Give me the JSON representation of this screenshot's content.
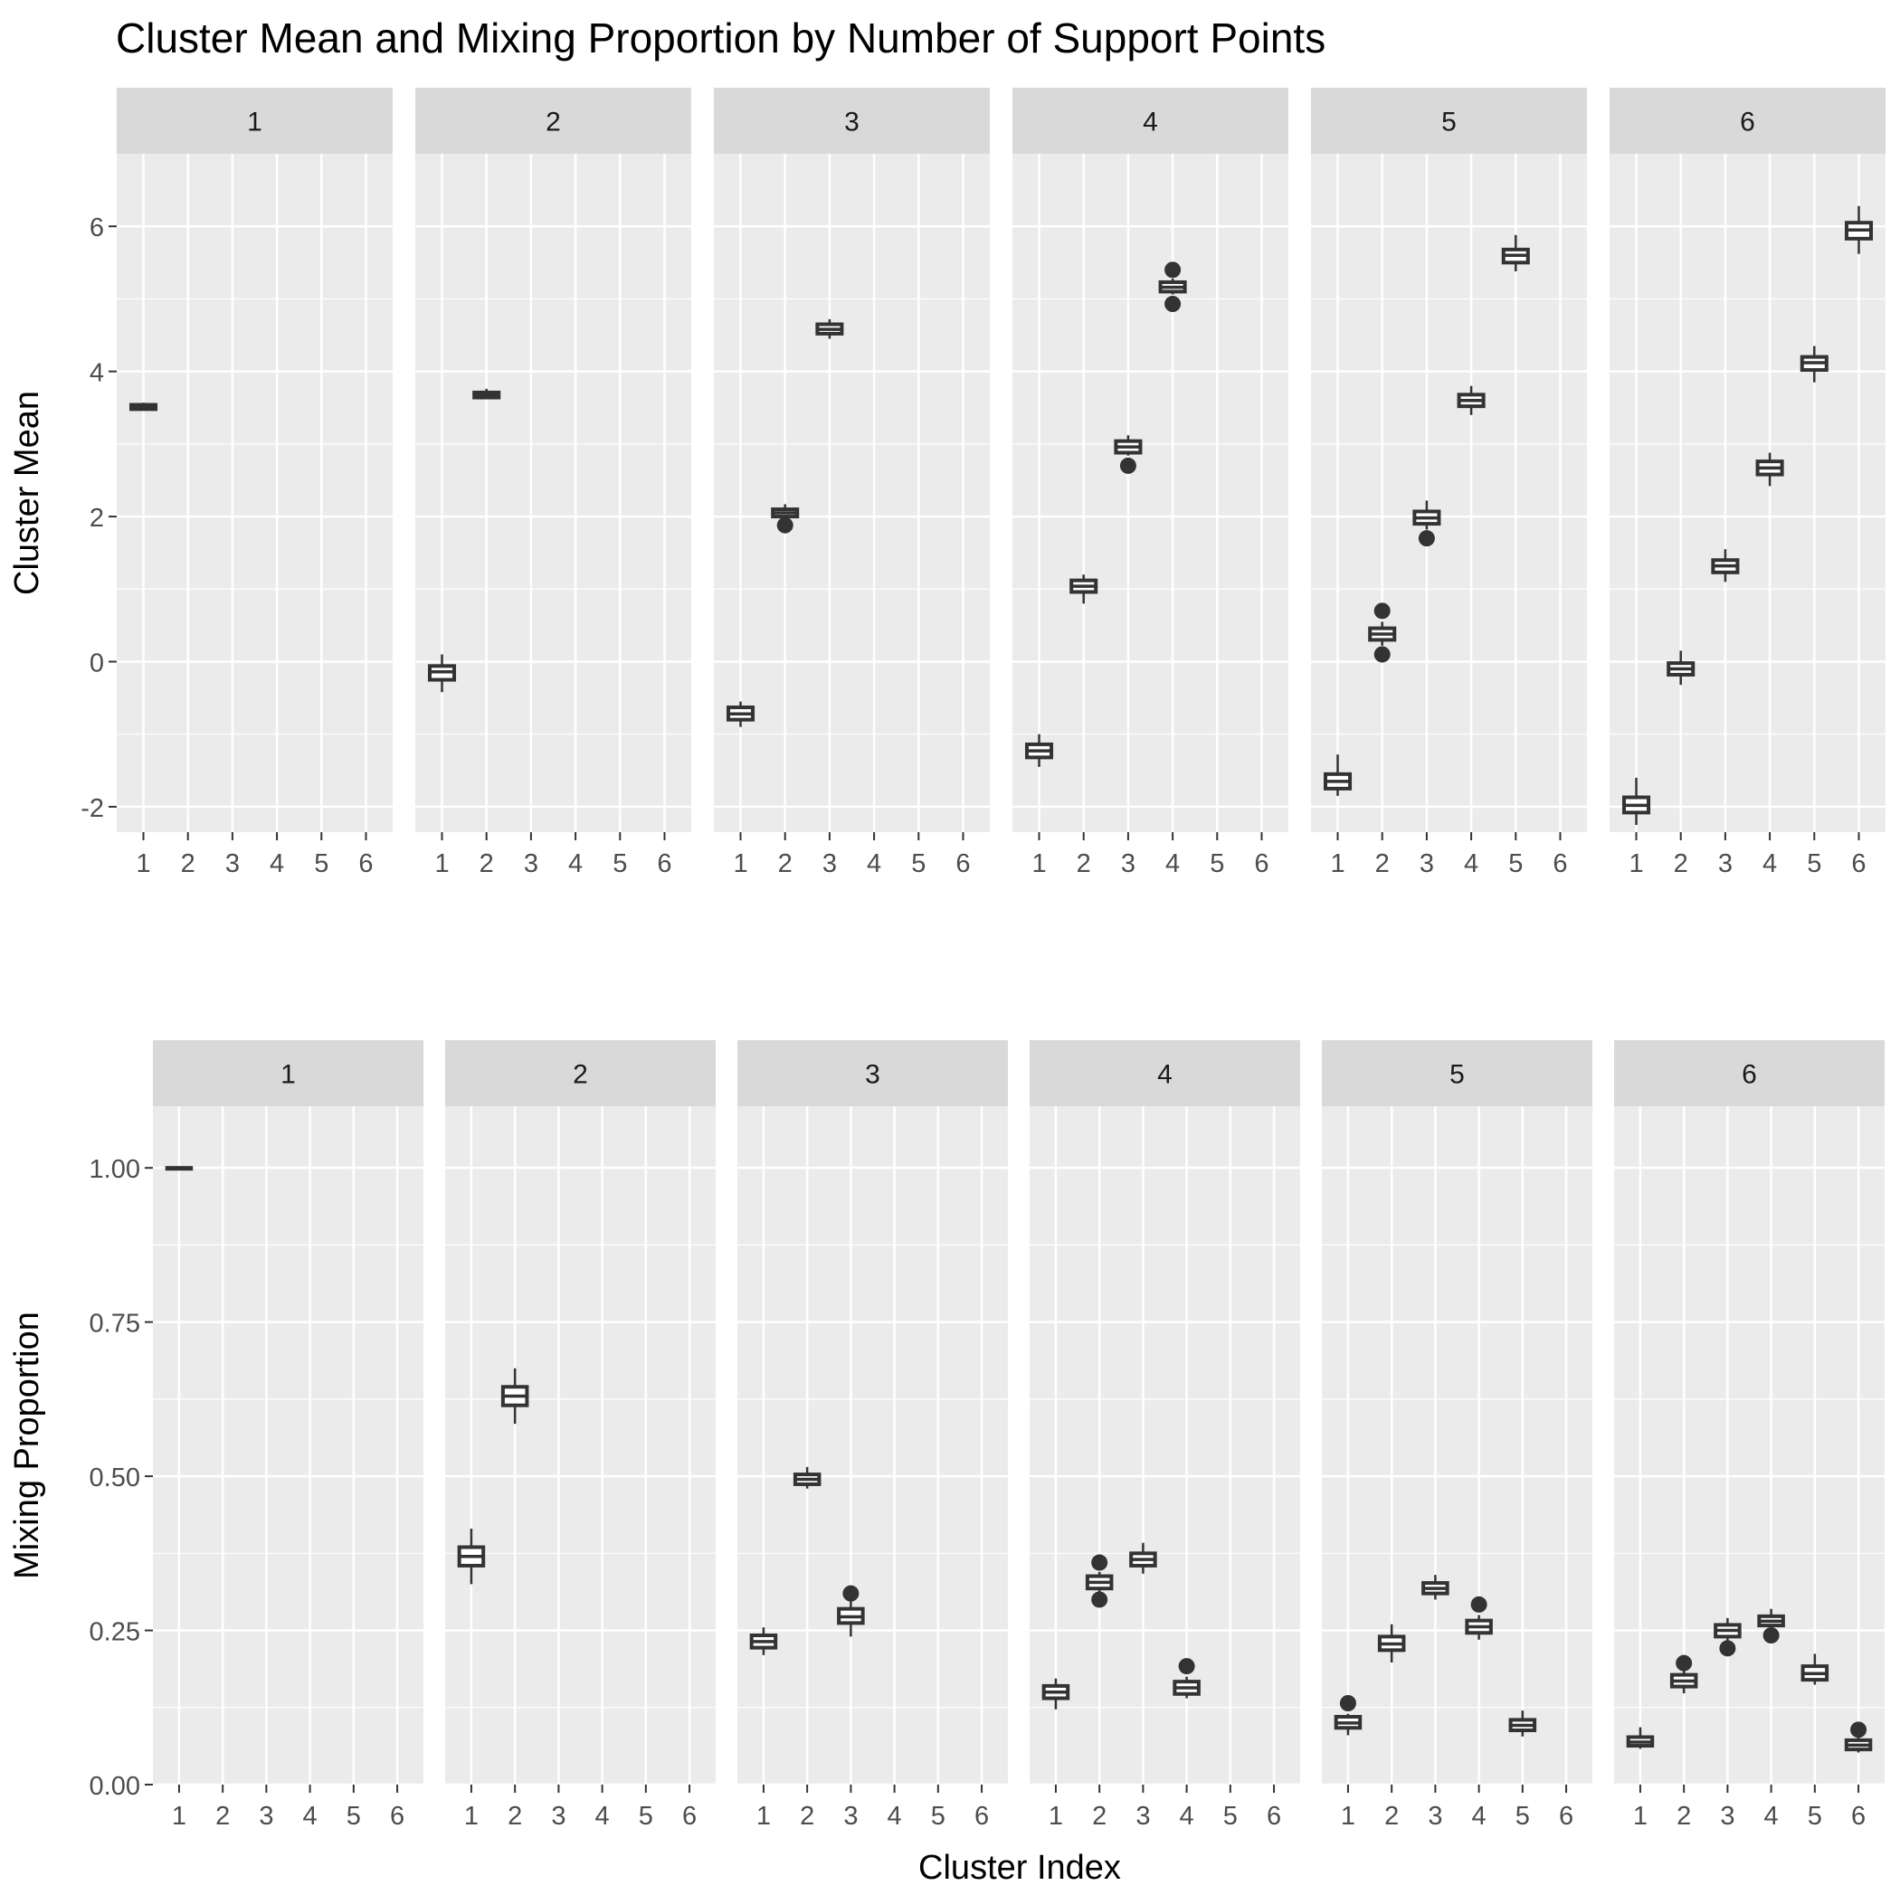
{
  "title": "Cluster Mean and Mixing Proportion by Number of Support Points",
  "xlabel": "Cluster Index",
  "colors": {
    "panel_bg": "#ebebeb",
    "strip_bg": "#d9d9d9",
    "grid": "#ffffff",
    "box_stroke": "#333333",
    "box_fill": "#ffffff",
    "text": "#1a1a1a",
    "tick_text": "#4d4d4d"
  },
  "chart_data": [
    {
      "type": "boxplot",
      "ylabel": "Cluster Mean",
      "ylim": [
        -2.35,
        7.0
      ],
      "yticks": [
        -2,
        0,
        2,
        4,
        6
      ],
      "ytick_labels": [
        "-2",
        "0",
        "2",
        "4",
        "6"
      ],
      "categories": [
        "1",
        "2",
        "3",
        "4",
        "5",
        "6"
      ],
      "facets": [
        {
          "label": "1",
          "boxes": [
            {
              "x": 1,
              "whisker_low": 3.46,
              "q1": 3.48,
              "median": 3.51,
              "q3": 3.54,
              "whisker_high": 3.57,
              "outliers": []
            }
          ]
        },
        {
          "label": "2",
          "boxes": [
            {
              "x": 1,
              "whisker_low": -0.42,
              "q1": -0.25,
              "median": -0.14,
              "q3": -0.06,
              "whisker_high": 0.1,
              "outliers": []
            },
            {
              "x": 2,
              "whisker_low": 3.62,
              "q1": 3.64,
              "median": 3.68,
              "q3": 3.71,
              "whisker_high": 3.76,
              "outliers": []
            }
          ]
        },
        {
          "label": "3",
          "boxes": [
            {
              "x": 1,
              "whisker_low": -0.9,
              "q1": -0.8,
              "median": -0.72,
              "q3": -0.63,
              "whisker_high": -0.55,
              "outliers": []
            },
            {
              "x": 2,
              "whisker_low": 1.96,
              "q1": 2.0,
              "median": 2.05,
              "q3": 2.1,
              "whisker_high": 2.17,
              "outliers": [
                1.88
              ]
            },
            {
              "x": 3,
              "whisker_low": 4.45,
              "q1": 4.52,
              "median": 4.58,
              "q3": 4.65,
              "whisker_high": 4.72,
              "outliers": []
            }
          ]
        },
        {
          "label": "4",
          "boxes": [
            {
              "x": 1,
              "whisker_low": -1.45,
              "q1": -1.32,
              "median": -1.23,
              "q3": -1.14,
              "whisker_high": -1.0,
              "outliers": []
            },
            {
              "x": 2,
              "whisker_low": 0.8,
              "q1": 0.96,
              "median": 1.04,
              "q3": 1.12,
              "whisker_high": 1.2,
              "outliers": []
            },
            {
              "x": 3,
              "whisker_low": 2.84,
              "q1": 2.88,
              "median": 2.96,
              "q3": 3.04,
              "whisker_high": 3.12,
              "outliers": [
                2.7
              ]
            },
            {
              "x": 4,
              "whisker_low": 5.06,
              "q1": 5.1,
              "median": 5.16,
              "q3": 5.23,
              "whisker_high": 5.28,
              "outliers": [
                5.4,
                4.93
              ]
            }
          ]
        },
        {
          "label": "5",
          "boxes": [
            {
              "x": 1,
              "whisker_low": -1.85,
              "q1": -1.75,
              "median": -1.65,
              "q3": -1.55,
              "whisker_high": -1.28,
              "outliers": []
            },
            {
              "x": 2,
              "whisker_low": 0.22,
              "q1": 0.3,
              "median": 0.38,
              "q3": 0.46,
              "whisker_high": 0.55,
              "outliers": [
                0.7,
                0.1
              ]
            },
            {
              "x": 3,
              "whisker_low": 1.82,
              "q1": 1.9,
              "median": 1.98,
              "q3": 2.07,
              "whisker_high": 2.22,
              "outliers": [
                1.7
              ]
            },
            {
              "x": 4,
              "whisker_low": 3.4,
              "q1": 3.52,
              "median": 3.6,
              "q3": 3.68,
              "whisker_high": 3.8,
              "outliers": []
            },
            {
              "x": 5,
              "whisker_low": 5.38,
              "q1": 5.5,
              "median": 5.6,
              "q3": 5.68,
              "whisker_high": 5.88,
              "outliers": []
            }
          ]
        },
        {
          "label": "6",
          "boxes": [
            {
              "x": 1,
              "whisker_low": -2.25,
              "q1": -2.08,
              "median": -1.98,
              "q3": -1.87,
              "whisker_high": -1.6,
              "outliers": []
            },
            {
              "x": 2,
              "whisker_low": -0.32,
              "q1": -0.18,
              "median": -0.1,
              "q3": -0.02,
              "whisker_high": 0.15,
              "outliers": []
            },
            {
              "x": 3,
              "whisker_low": 1.1,
              "q1": 1.23,
              "median": 1.32,
              "q3": 1.4,
              "whisker_high": 1.55,
              "outliers": []
            },
            {
              "x": 4,
              "whisker_low": 2.42,
              "q1": 2.58,
              "median": 2.67,
              "q3": 2.76,
              "whisker_high": 2.88,
              "outliers": []
            },
            {
              "x": 5,
              "whisker_low": 3.85,
              "q1": 4.02,
              "median": 4.12,
              "q3": 4.2,
              "whisker_high": 4.35,
              "outliers": []
            },
            {
              "x": 6,
              "whisker_low": 5.62,
              "q1": 5.83,
              "median": 5.95,
              "q3": 6.05,
              "whisker_high": 6.28,
              "outliers": []
            }
          ]
        }
      ]
    },
    {
      "type": "boxplot",
      "ylabel": "Mixing Proportion",
      "ylim": [
        0.0,
        1.1
      ],
      "yticks": [
        0.0,
        0.25,
        0.5,
        0.75,
        1.0
      ],
      "ytick_labels": [
        "0.00",
        "0.25",
        "0.50",
        "0.75",
        "1.00"
      ],
      "categories": [
        "1",
        "2",
        "3",
        "4",
        "5",
        "6"
      ],
      "facets": [
        {
          "label": "1",
          "boxes": [
            {
              "x": 1,
              "whisker_low": 1.0,
              "q1": 1.0,
              "median": 1.0,
              "q3": 1.0,
              "whisker_high": 1.0,
              "outliers": []
            }
          ]
        },
        {
          "label": "2",
          "boxes": [
            {
              "x": 1,
              "whisker_low": 0.325,
              "q1": 0.355,
              "median": 0.37,
              "q3": 0.385,
              "whisker_high": 0.415,
              "outliers": []
            },
            {
              "x": 2,
              "whisker_low": 0.585,
              "q1": 0.615,
              "median": 0.63,
              "q3": 0.645,
              "whisker_high": 0.675,
              "outliers": []
            }
          ]
        },
        {
          "label": "3",
          "boxes": [
            {
              "x": 1,
              "whisker_low": 0.21,
              "q1": 0.222,
              "median": 0.232,
              "q3": 0.242,
              "whisker_high": 0.255,
              "outliers": []
            },
            {
              "x": 2,
              "whisker_low": 0.48,
              "q1": 0.487,
              "median": 0.495,
              "q3": 0.503,
              "whisker_high": 0.515,
              "outliers": []
            },
            {
              "x": 3,
              "whisker_low": 0.24,
              "q1": 0.262,
              "median": 0.272,
              "q3": 0.285,
              "whisker_high": 0.298,
              "outliers": [
                0.31
              ]
            }
          ]
        },
        {
          "label": "4",
          "boxes": [
            {
              "x": 1,
              "whisker_low": 0.122,
              "q1": 0.14,
              "median": 0.15,
              "q3": 0.16,
              "whisker_high": 0.172,
              "outliers": []
            },
            {
              "x": 2,
              "whisker_low": 0.312,
              "q1": 0.318,
              "median": 0.328,
              "q3": 0.338,
              "whisker_high": 0.345,
              "outliers": [
                0.36,
                0.3
              ]
            },
            {
              "x": 3,
              "whisker_low": 0.342,
              "q1": 0.355,
              "median": 0.365,
              "q3": 0.375,
              "whisker_high": 0.392,
              "outliers": []
            },
            {
              "x": 4,
              "whisker_low": 0.14,
              "q1": 0.147,
              "median": 0.157,
              "q3": 0.167,
              "whisker_high": 0.175,
              "outliers": [
                0.192
              ]
            }
          ]
        },
        {
          "label": "5",
          "boxes": [
            {
              "x": 1,
              "whisker_low": 0.08,
              "q1": 0.092,
              "median": 0.1,
              "q3": 0.11,
              "whisker_high": 0.115,
              "outliers": [
                0.132
              ]
            },
            {
              "x": 2,
              "whisker_low": 0.198,
              "q1": 0.218,
              "median": 0.228,
              "q3": 0.24,
              "whisker_high": 0.26,
              "outliers": []
            },
            {
              "x": 3,
              "whisker_low": 0.3,
              "q1": 0.31,
              "median": 0.318,
              "q3": 0.327,
              "whisker_high": 0.34,
              "outliers": []
            },
            {
              "x": 4,
              "whisker_low": 0.235,
              "q1": 0.246,
              "median": 0.256,
              "q3": 0.266,
              "whisker_high": 0.275,
              "outliers": [
                0.292
              ]
            },
            {
              "x": 5,
              "whisker_low": 0.078,
              "q1": 0.088,
              "median": 0.096,
              "q3": 0.105,
              "whisker_high": 0.12,
              "outliers": []
            }
          ]
        },
        {
          "label": "6",
          "boxes": [
            {
              "x": 1,
              "whisker_low": 0.058,
              "q1": 0.063,
              "median": 0.069,
              "q3": 0.077,
              "whisker_high": 0.093,
              "outliers": []
            },
            {
              "x": 2,
              "whisker_low": 0.148,
              "q1": 0.159,
              "median": 0.168,
              "q3": 0.178,
              "whisker_high": 0.185,
              "outliers": [
                0.197
              ]
            },
            {
              "x": 3,
              "whisker_low": 0.233,
              "q1": 0.24,
              "median": 0.25,
              "q3": 0.259,
              "whisker_high": 0.27,
              "outliers": [
                0.221
              ]
            },
            {
              "x": 4,
              "whisker_low": 0.255,
              "q1": 0.258,
              "median": 0.265,
              "q3": 0.273,
              "whisker_high": 0.285,
              "outliers": [
                0.242
              ]
            },
            {
              "x": 5,
              "whisker_low": 0.162,
              "q1": 0.17,
              "median": 0.18,
              "q3": 0.192,
              "whisker_high": 0.212,
              "outliers": []
            },
            {
              "x": 6,
              "whisker_low": 0.052,
              "q1": 0.057,
              "median": 0.064,
              "q3": 0.072,
              "whisker_high": 0.078,
              "outliers": [
                0.089
              ]
            }
          ]
        }
      ]
    }
  ]
}
